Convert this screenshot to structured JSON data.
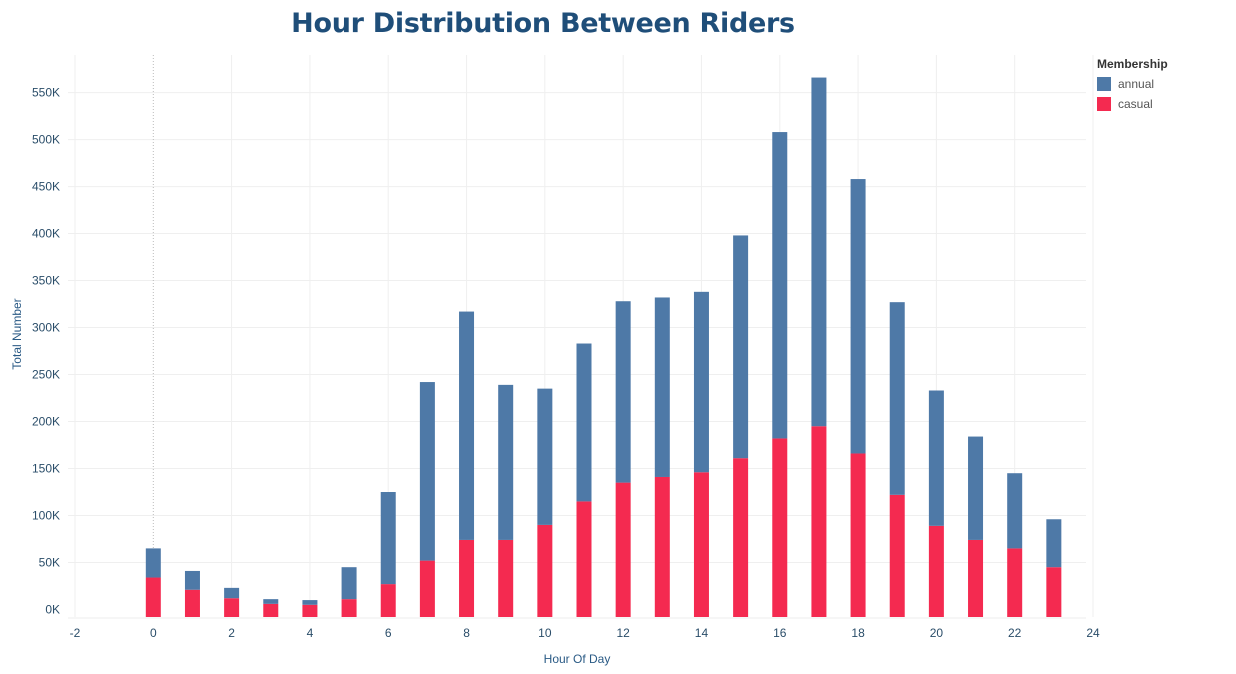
{
  "chart_data": {
    "type": "bar",
    "title": "Hour Distribution Between Riders",
    "xlabel": "Hour Of Day",
    "ylabel": "Total Number",
    "stacked": true,
    "x": [
      0,
      1,
      2,
      3,
      4,
      5,
      6,
      7,
      8,
      9,
      10,
      11,
      12,
      13,
      14,
      15,
      16,
      17,
      18,
      19,
      20,
      21,
      22,
      23
    ],
    "xticks": [
      "-2",
      "0",
      "2",
      "4",
      "6",
      "8",
      "10",
      "12",
      "14",
      "16",
      "18",
      "20",
      "22",
      "24"
    ],
    "xtick_values": [
      -2,
      0,
      2,
      4,
      6,
      8,
      10,
      12,
      14,
      16,
      18,
      20,
      22,
      24
    ],
    "xlim": [
      -2,
      24
    ],
    "yticks": [
      "0K",
      "50K",
      "100K",
      "150K",
      "200K",
      "250K",
      "300K",
      "350K",
      "400K",
      "450K",
      "500K",
      "550K"
    ],
    "ytick_values": [
      0,
      50000,
      100000,
      150000,
      200000,
      250000,
      300000,
      350000,
      400000,
      450000,
      500000,
      550000
    ],
    "ylim": [
      -8000,
      590000
    ],
    "grid": true,
    "legend_title": "Membership",
    "legend_position": "top-right",
    "series": [
      {
        "name": "casual",
        "color": "#f42a50",
        "values": [
          34000,
          21000,
          12000,
          6000,
          5000,
          11000,
          27000,
          52000,
          74000,
          74000,
          90000,
          115000,
          135000,
          141000,
          146000,
          161000,
          182000,
          195000,
          166000,
          122000,
          89000,
          74000,
          65000,
          45000
        ]
      },
      {
        "name": "annual",
        "color": "#4e79a7",
        "values": [
          31000,
          20000,
          11000,
          5000,
          5000,
          34000,
          98000,
          190000,
          243000,
          165000,
          145000,
          168000,
          193000,
          191000,
          192000,
          237000,
          326000,
          371000,
          292000,
          205000,
          144000,
          110000,
          80000,
          51000
        ]
      }
    ]
  }
}
